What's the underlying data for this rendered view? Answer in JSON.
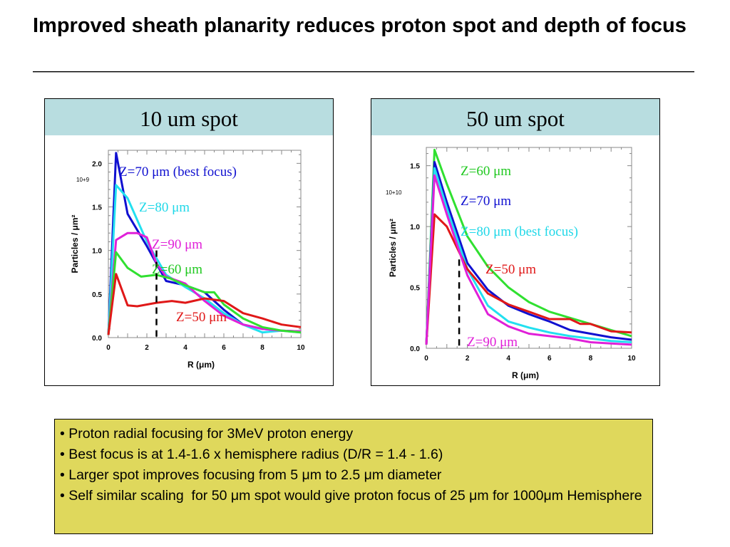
{
  "title": "Improved sheath planarity reduces proton spot and depth of focus",
  "notes": [
    "• Proton radial focusing for 3MeV proton energy",
    "• Best focus is at 1.4-1.6 x hemisphere radius (D/R = 1.4 - 1.6)",
    "• Larger spot improves focusing from 5 μm to 2.5 μm diameter",
    "• Self similar scaling  for 50 μm spot would give proton focus of 25 μm for 1000μm Hemisphere"
  ],
  "chart_data": [
    {
      "type": "line",
      "header": "10 um spot",
      "title": "",
      "xlabel": "R (μm)",
      "ylabel": "Particles / μm²",
      "y_multiplier": "10+9",
      "xlim": [
        0,
        10
      ],
      "ylim": [
        0,
        2.15
      ],
      "xticks": [
        "0",
        "2",
        "4",
        "6",
        "8",
        "10"
      ],
      "yticks": [
        "0.0",
        "0.5",
        "1.0",
        "1.5",
        "2.0"
      ],
      "marker_x": 2.5,
      "series": [
        {
          "name": "Z=70 μm (best focus)",
          "color": "#1010d0",
          "x": [
            0,
            0.4,
            1,
            2,
            3,
            4,
            5,
            6,
            7,
            8,
            9,
            10
          ],
          "y": [
            0.03,
            2.12,
            1.42,
            1.05,
            0.65,
            0.6,
            0.52,
            0.32,
            0.15,
            0.1,
            0.08,
            0.07
          ]
        },
        {
          "name": "Z=80 μm",
          "color": "#22e0f0",
          "x": [
            0,
            0.4,
            1,
            2,
            3,
            4,
            5,
            6,
            7,
            8,
            9,
            10
          ],
          "y": [
            0.03,
            1.75,
            1.6,
            1.1,
            0.72,
            0.58,
            0.45,
            0.28,
            0.15,
            0.06,
            0.08,
            0.06
          ]
        },
        {
          "name": "Z=90 μm",
          "color": "#e020d8",
          "x": [
            0,
            0.4,
            1,
            1.5,
            2,
            2.5,
            3,
            4,
            5,
            6,
            7,
            8,
            9,
            10
          ],
          "y": [
            0.03,
            1.12,
            1.2,
            1.2,
            1.15,
            0.85,
            0.7,
            0.62,
            0.42,
            0.25,
            0.15,
            0.1,
            0.08,
            0.07
          ]
        },
        {
          "name": "Z=60 μm",
          "color": "#30e030",
          "x": [
            0,
            0.4,
            1,
            1.7,
            2.5,
            3.2,
            4,
            5,
            5.5,
            6,
            7,
            8,
            9,
            10
          ],
          "y": [
            0.03,
            0.98,
            0.8,
            0.7,
            0.72,
            0.68,
            0.6,
            0.52,
            0.52,
            0.38,
            0.22,
            0.12,
            0.08,
            0.06
          ]
        },
        {
          "name": "Z=50 μm",
          "color": "#e01818",
          "x": [
            0,
            0.4,
            1,
            1.5,
            2.5,
            3.3,
            4,
            5,
            6,
            7,
            8,
            9,
            10
          ],
          "y": [
            0.03,
            0.73,
            0.37,
            0.36,
            0.4,
            0.42,
            0.4,
            0.45,
            0.42,
            0.28,
            0.22,
            0.15,
            0.12
          ]
        }
      ],
      "annotations": [
        "Z=70 μm (best focus)",
        "Z=80 μm",
        "Z=90 μm",
        "Z=60 μm",
        "Z=50 μm"
      ]
    },
    {
      "type": "line",
      "header": "50 um spot",
      "title": "",
      "xlabel": "R (μm)",
      "ylabel": "Particles / μm²",
      "y_multiplier": "10+10",
      "xlim": [
        0,
        10
      ],
      "ylim": [
        0,
        1.65
      ],
      "xticks": [
        "0",
        "2",
        "4",
        "6",
        "8",
        "10"
      ],
      "yticks": [
        "0.0",
        "0.5",
        "1.0",
        "1.5"
      ],
      "marker_x": 1.6,
      "series": [
        {
          "name": "Z=60 μm",
          "color": "#30e030",
          "x": [
            0,
            0.4,
            1,
            2,
            3,
            4,
            5,
            6,
            7,
            8,
            9,
            10
          ],
          "y": [
            0.03,
            1.63,
            1.35,
            0.92,
            0.67,
            0.5,
            0.38,
            0.3,
            0.25,
            0.2,
            0.15,
            0.1
          ]
        },
        {
          "name": "Z=70 μm",
          "color": "#1010d0",
          "x": [
            0,
            0.4,
            1,
            2,
            3,
            4,
            5,
            6,
            7,
            8,
            9,
            10
          ],
          "y": [
            0.03,
            1.53,
            1.2,
            0.7,
            0.48,
            0.35,
            0.28,
            0.22,
            0.15,
            0.12,
            0.09,
            0.07
          ]
        },
        {
          "name": "Z=80 μm (best focus)",
          "color": "#22e0f0",
          "x": [
            0,
            0.4,
            1,
            2,
            3,
            4,
            5,
            6,
            7,
            8,
            9,
            10
          ],
          "y": [
            0.03,
            1.48,
            1.15,
            0.65,
            0.35,
            0.22,
            0.17,
            0.13,
            0.1,
            0.08,
            0.06,
            0.05
          ]
        },
        {
          "name": "Z=50 μm",
          "color": "#e01818",
          "x": [
            0,
            0.4,
            1,
            2,
            3,
            4,
            5,
            6,
            7,
            7.5,
            8,
            9,
            10
          ],
          "y": [
            0.03,
            1.1,
            1.0,
            0.65,
            0.45,
            0.36,
            0.3,
            0.24,
            0.24,
            0.2,
            0.2,
            0.14,
            0.13
          ]
        },
        {
          "name": "Z=90 μm",
          "color": "#e020d8",
          "x": [
            0,
            0.4,
            1,
            2,
            3,
            4,
            5,
            6,
            7,
            8,
            9,
            10
          ],
          "y": [
            0.03,
            1.42,
            1.1,
            0.6,
            0.28,
            0.18,
            0.12,
            0.1,
            0.08,
            0.05,
            0.04,
            0.03
          ]
        }
      ],
      "annotations": [
        "Z=60 μm",
        "Z=70 μm",
        "Z=80 μm (best focus)",
        "Z=50 μm",
        "Z=90 μm"
      ]
    }
  ]
}
